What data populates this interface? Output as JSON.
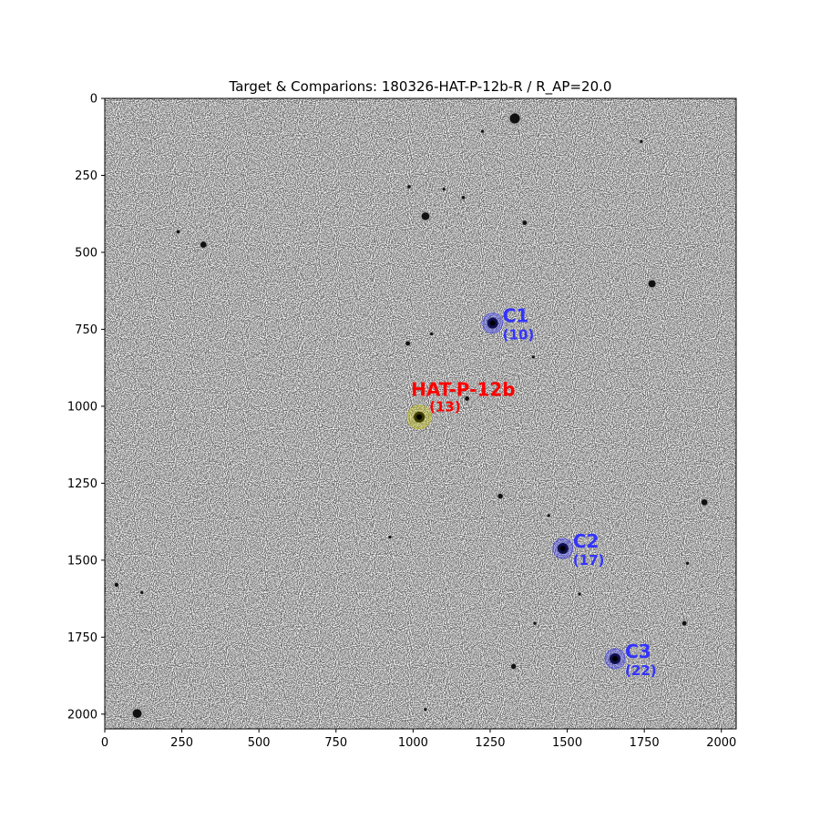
{
  "chart_data": {
    "type": "scatter",
    "title": "Target & Comparions: 180326-HAT-P-12b-R / R_AP=20.0",
    "xlabel": "",
    "ylabel": "",
    "xlim": [
      0,
      2048
    ],
    "ylim": [
      2048,
      0
    ],
    "xticks": [
      0,
      250,
      500,
      750,
      1000,
      1250,
      1500,
      1750,
      2000
    ],
    "yticks": [
      0,
      250,
      500,
      750,
      1000,
      1250,
      1500,
      1750,
      2000
    ],
    "grid": false,
    "image": "grayscale star field, inverted (stars dark on white)",
    "targets": [
      {
        "label": "HAT-P-12b",
        "aperture": "(13)",
        "x": 1020,
        "y": 1035,
        "color": "#ff0000",
        "marker_color": "#c8c800"
      },
      {
        "label": "C1",
        "aperture": "(10)",
        "x": 1258,
        "y": 730,
        "color": "#3333ff",
        "marker_color": "#3333ff"
      },
      {
        "label": "C2",
        "aperture": "(17)",
        "x": 1486,
        "y": 1462,
        "color": "#3333ff",
        "marker_color": "#3333ff"
      },
      {
        "label": "C3",
        "aperture": "(22)",
        "x": 1655,
        "y": 1820,
        "color": "#3333ff",
        "marker_color": "#3333ff"
      }
    ],
    "stars": [
      {
        "x": 1330,
        "y": 65,
        "r": 18
      },
      {
        "x": 1040,
        "y": 383,
        "r": 14
      },
      {
        "x": 320,
        "y": 475,
        "r": 11
      },
      {
        "x": 1775,
        "y": 602,
        "r": 13
      },
      {
        "x": 1362,
        "y": 404,
        "r": 8
      },
      {
        "x": 983,
        "y": 796,
        "r": 8
      },
      {
        "x": 1175,
        "y": 975,
        "r": 8
      },
      {
        "x": 1283,
        "y": 1292,
        "r": 9
      },
      {
        "x": 1945,
        "y": 1312,
        "r": 11
      },
      {
        "x": 1880,
        "y": 1705,
        "r": 8
      },
      {
        "x": 1326,
        "y": 1845,
        "r": 9
      },
      {
        "x": 105,
        "y": 1998,
        "r": 16
      },
      {
        "x": 38,
        "y": 1580,
        "r": 7
      },
      {
        "x": 238,
        "y": 433,
        "r": 6
      },
      {
        "x": 987,
        "y": 287,
        "r": 6
      },
      {
        "x": 1225,
        "y": 107,
        "r": 5
      },
      {
        "x": 1163,
        "y": 322,
        "r": 6
      },
      {
        "x": 1440,
        "y": 1355,
        "r": 5
      },
      {
        "x": 1395,
        "y": 1705,
        "r": 5
      },
      {
        "x": 925,
        "y": 1425,
        "r": 5
      },
      {
        "x": 1890,
        "y": 1510,
        "r": 5
      },
      {
        "x": 120,
        "y": 1605,
        "r": 4
      },
      {
        "x": 1740,
        "y": 140,
        "r": 4
      },
      {
        "x": 1540,
        "y": 1610,
        "r": 4
      },
      {
        "x": 1100,
        "y": 295,
        "r": 5
      },
      {
        "x": 1390,
        "y": 840,
        "r": 4
      },
      {
        "x": 1060,
        "y": 765,
        "r": 5
      },
      {
        "x": 1040,
        "y": 1985,
        "r": 4
      }
    ]
  }
}
